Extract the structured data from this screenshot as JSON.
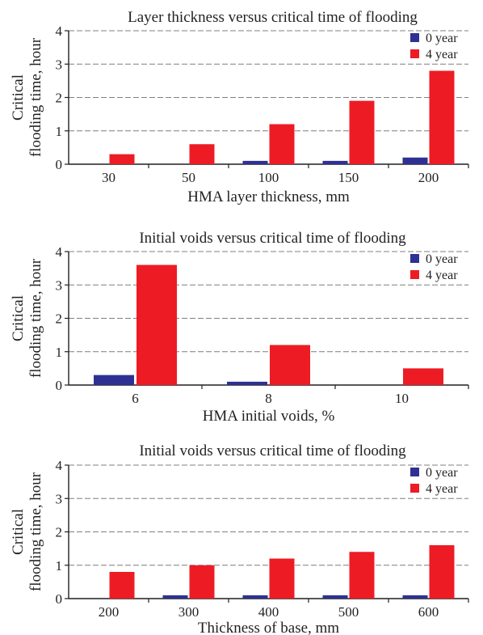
{
  "colors": {
    "series_0": "#2e3192",
    "series_1": "#ed1c24",
    "axis": "#231f20",
    "grid": "#7f7f7f"
  },
  "chart_data": [
    {
      "type": "bar",
      "title": "Layer thickness versus critical time of flooding",
      "xlabel": "HMA layer thickness, mm",
      "ylabel": [
        "Critical",
        "flooding time, hour"
      ],
      "categories": [
        "30",
        "50",
        "100",
        "150",
        "200"
      ],
      "series": [
        {
          "name": "0 year",
          "values": [
            0,
            0,
            0.1,
            0.1,
            0.2
          ]
        },
        {
          "name": "4 year",
          "values": [
            0.3,
            0.6,
            1.2,
            1.9,
            2.8
          ]
        }
      ],
      "ylim": [
        0,
        4
      ],
      "yticks": [
        "0",
        "1",
        "2",
        "3",
        "4"
      ],
      "grid": "horizontal dashed",
      "legend": "top-right"
    },
    {
      "type": "bar",
      "title": "Initial voids versus critical time of flooding",
      "xlabel": "HMA initial voids, %",
      "ylabel": [
        "Critical",
        "flooding time, hour"
      ],
      "categories": [
        "6",
        "8",
        "10"
      ],
      "series": [
        {
          "name": "0 year",
          "values": [
            0.3,
            0.1,
            0
          ]
        },
        {
          "name": "4 year",
          "values": [
            3.6,
            1.2,
            0.5
          ]
        }
      ],
      "ylim": [
        0,
        4
      ],
      "yticks": [
        "0",
        "1",
        "2",
        "3",
        "4"
      ],
      "grid": "horizontal dashed",
      "legend": "top-right"
    },
    {
      "type": "bar",
      "title": "Initial voids versus critical time of flooding",
      "xlabel": "Thickness of base, mm",
      "ylabel": [
        "Critical",
        "flooding time, hour"
      ],
      "categories": [
        "200",
        "300",
        "400",
        "500",
        "600"
      ],
      "series": [
        {
          "name": "0 year",
          "values": [
            0,
            0.1,
            0.1,
            0.1,
            0.1
          ]
        },
        {
          "name": "4 year",
          "values": [
            0.8,
            1.0,
            1.2,
            1.4,
            1.6
          ]
        }
      ],
      "ylim": [
        0,
        4
      ],
      "yticks": [
        "0",
        "1",
        "2",
        "3",
        "4"
      ],
      "grid": "horizontal dashed",
      "legend": "top-right"
    }
  ]
}
